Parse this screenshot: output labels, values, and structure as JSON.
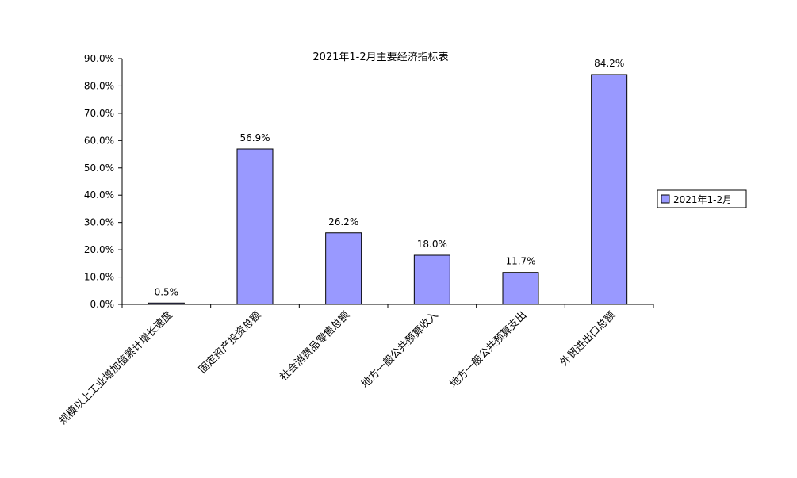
{
  "chart_data": {
    "type": "bar",
    "title": "2021年1-2月主要经济指标表",
    "categories": [
      "规模以上工业增加值累计增长速度",
      "固定资产投资总额",
      "社会消费品零售总额",
      "地方一般公共预算收入",
      "地方一般公共预算支出",
      "外贸进出口总额"
    ],
    "series": [
      {
        "name": "2021年1-2月",
        "values": [
          0.5,
          56.9,
          26.2,
          18.0,
          11.7,
          84.2
        ],
        "labels": [
          "0.5%",
          "56.9%",
          "26.2%",
          "18.0%",
          "11.7%",
          "84.2%"
        ],
        "color": "#9999ff"
      }
    ],
    "ylim": [
      0,
      90
    ],
    "yticks": [
      "0.0%",
      "10.0%",
      "20.0%",
      "30.0%",
      "40.0%",
      "50.0%",
      "60.0%",
      "70.0%",
      "80.0%",
      "90.0%"
    ],
    "xlabel": "",
    "ylabel": "",
    "grid": false,
    "legend": "right"
  }
}
